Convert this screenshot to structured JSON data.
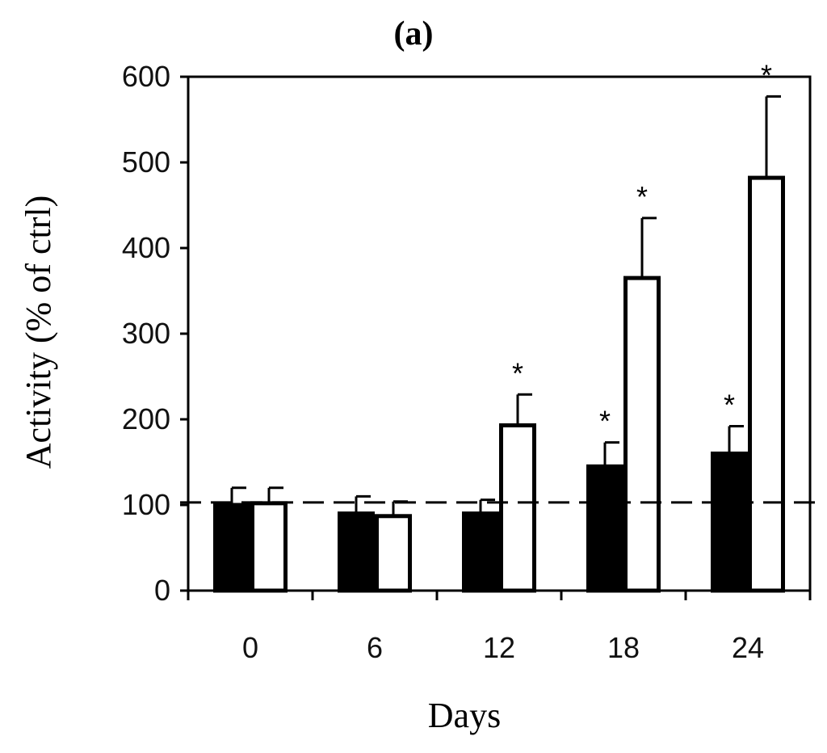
{
  "chart_data": {
    "type": "bar",
    "title": "(a)",
    "xlabel": "Days",
    "ylabel": "Activity (% of ctrl)",
    "categories": [
      "0",
      "6",
      "12",
      "18",
      "24"
    ],
    "ylim": [
      0,
      600
    ],
    "yticks": [
      0,
      100,
      200,
      300,
      400,
      500,
      600
    ],
    "reference_line": 103,
    "significance_marker": "*",
    "series": [
      {
        "name": "black bars",
        "fill": "#000000",
        "values": [
          100,
          90,
          90,
          145,
          160
        ],
        "errors": [
          20,
          20,
          16,
          28,
          32
        ],
        "significant": [
          false,
          false,
          false,
          true,
          true
        ]
      },
      {
        "name": "white bars",
        "fill": "#ffffff",
        "values": [
          102,
          87,
          193,
          365,
          482
        ],
        "errors": [
          18,
          17,
          36,
          70,
          95
        ],
        "significant": [
          false,
          false,
          true,
          true,
          true
        ]
      }
    ]
  }
}
